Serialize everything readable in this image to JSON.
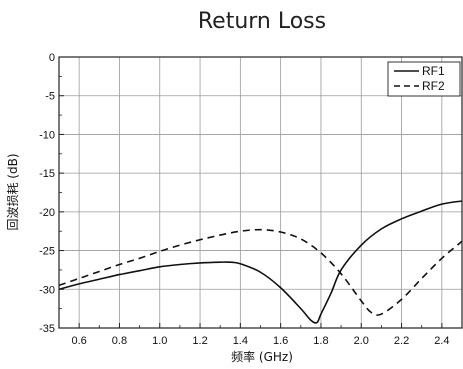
{
  "chart_data": {
    "type": "line",
    "title": "Return Loss",
    "xlabel": "频率 (GHz)",
    "ylabel": "回波损耗 (dB)",
    "xlim": [
      0.5,
      2.5
    ],
    "ylim": [
      -35,
      0
    ],
    "xticks": [
      0.6,
      0.8,
      1.0,
      1.2,
      1.4,
      1.6,
      1.8,
      2.0,
      2.2,
      2.4
    ],
    "xtick_labels": [
      "0.6",
      "0.8",
      "1.0",
      "1.2",
      "1.4",
      "1.6",
      "1.8",
      "2.0",
      "2.2",
      "2.4"
    ],
    "yticks": [
      0,
      -5,
      -10,
      -15,
      -20,
      -25,
      -30,
      -35
    ],
    "ytick_labels": [
      "0",
      "-5",
      "-10",
      "-15",
      "-20",
      "-25",
      "-30",
      "-35"
    ],
    "grid": true,
    "legend_position": "top-right",
    "series": [
      {
        "name": "RF1",
        "style": "solid",
        "color": "#111111",
        "x": [
          0.5,
          0.6,
          0.7,
          0.8,
          0.9,
          1.0,
          1.1,
          1.2,
          1.3,
          1.35,
          1.4,
          1.5,
          1.6,
          1.7,
          1.75,
          1.78,
          1.8,
          1.85,
          1.9,
          2.0,
          2.1,
          2.2,
          2.3,
          2.4,
          2.5
        ],
        "y": [
          -30.0,
          -29.3,
          -28.7,
          -28.1,
          -27.6,
          -27.1,
          -26.8,
          -26.6,
          -26.5,
          -26.5,
          -26.7,
          -27.8,
          -29.8,
          -32.5,
          -34.0,
          -34.3,
          -33.2,
          -30.5,
          -27.5,
          -24.3,
          -22.2,
          -20.9,
          -19.9,
          -19.0,
          -18.6
        ]
      },
      {
        "name": "RF2",
        "style": "dashed",
        "color": "#111111",
        "x": [
          0.5,
          0.6,
          0.7,
          0.8,
          0.9,
          1.0,
          1.1,
          1.2,
          1.3,
          1.4,
          1.5,
          1.6,
          1.7,
          1.8,
          1.9,
          2.0,
          2.05,
          2.1,
          2.2,
          2.3,
          2.4,
          2.5
        ],
        "y": [
          -29.5,
          -28.6,
          -27.7,
          -26.8,
          -26.0,
          -25.1,
          -24.3,
          -23.6,
          -23.0,
          -22.5,
          -22.3,
          -22.6,
          -23.5,
          -25.3,
          -28.0,
          -31.5,
          -33.0,
          -33.2,
          -31.3,
          -28.6,
          -26.0,
          -23.8
        ]
      }
    ]
  }
}
